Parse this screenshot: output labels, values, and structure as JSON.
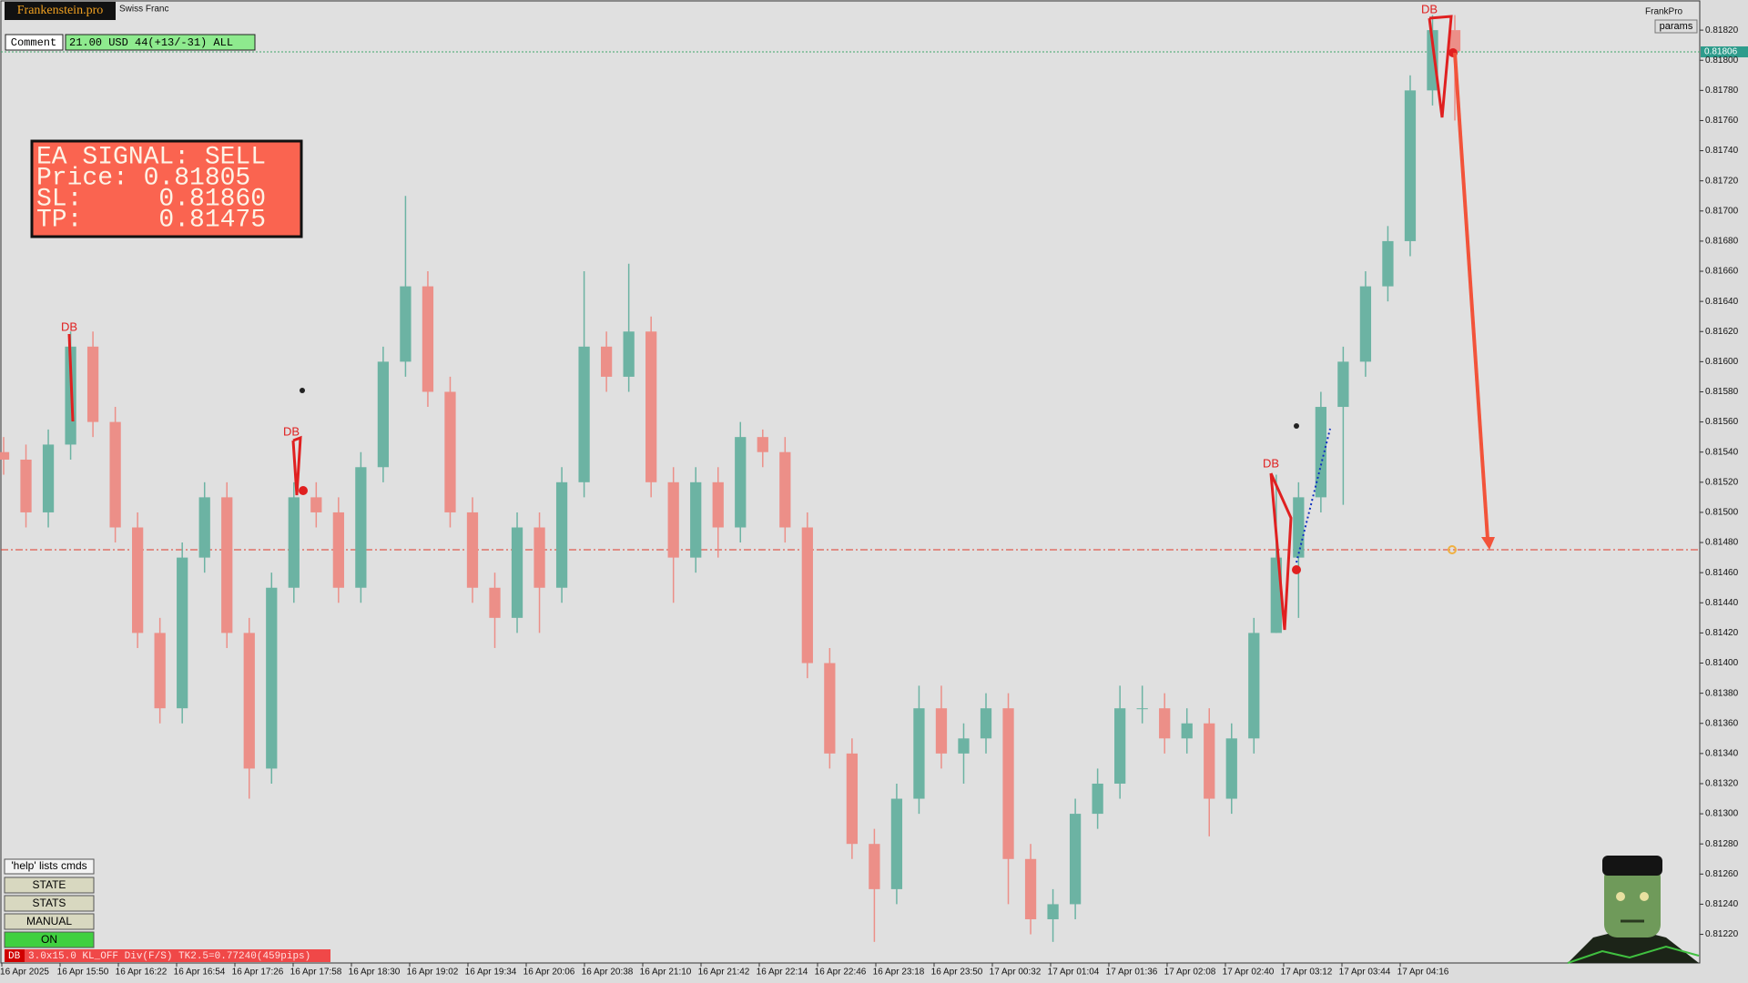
{
  "chart_data": {
    "type": "candlestick",
    "open": [
      0.8154,
      0.81535,
      0.815,
      0.81545,
      0.8161,
      0.8156,
      0.8149,
      0.8142,
      0.8137,
      0.8147,
      0.8151,
      0.8142,
      0.8133,
      0.8145,
      0.8151,
      0.815,
      0.8145,
      0.8153,
      0.816,
      0.8165,
      0.8158,
      0.815,
      0.8145,
      0.8143,
      0.8149,
      0.8145,
      0.8152,
      0.8161,
      0.8159,
      0.8162,
      0.8152,
      0.8147,
      0.8152,
      0.8149,
      0.8155,
      0.8154,
      0.8149,
      0.814,
      0.8134,
      0.8128,
      0.8125,
      0.8131,
      0.8137,
      0.8134,
      0.8135,
      0.8137,
      0.8127,
      0.8123,
      0.8124,
      0.813,
      0.8132,
      0.8137,
      0.8137,
      0.8135,
      0.8136,
      0.8131,
      0.8135,
      0.8142,
      0.8147,
      0.8151,
      0.8157,
      0.816,
      0.8165,
      0.8168,
      0.8178,
      0.8182
    ],
    "high": [
      0.8155,
      0.81545,
      0.81555,
      0.8162,
      0.8162,
      0.8157,
      0.815,
      0.8143,
      0.8148,
      0.8152,
      0.8152,
      0.8143,
      0.8146,
      0.8152,
      0.8152,
      0.8151,
      0.8154,
      0.8161,
      0.8171,
      0.8166,
      0.8159,
      0.8151,
      0.8146,
      0.815,
      0.815,
      0.8153,
      0.8166,
      0.8162,
      0.81665,
      0.8163,
      0.8153,
      0.8153,
      0.8153,
      0.8156,
      0.81555,
      0.8155,
      0.815,
      0.8141,
      0.8135,
      0.8129,
      0.8132,
      0.81385,
      0.81385,
      0.8136,
      0.8138,
      0.8138,
      0.8128,
      0.8125,
      0.8131,
      0.8133,
      0.81385,
      0.81385,
      0.8138,
      0.8137,
      0.8137,
      0.8136,
      0.8143,
      0.81525,
      0.8152,
      0.8158,
      0.8161,
      0.8166,
      0.8169,
      0.8179,
      0.8183,
      0.8183
    ],
    "low": [
      0.81525,
      0.8149,
      0.8149,
      0.81535,
      0.8155,
      0.8148,
      0.8141,
      0.8136,
      0.8136,
      0.8146,
      0.8141,
      0.8131,
      0.8132,
      0.8144,
      0.8149,
      0.8144,
      0.8144,
      0.8152,
      0.8159,
      0.8157,
      0.8149,
      0.8144,
      0.8141,
      0.8142,
      0.8142,
      0.8144,
      0.8151,
      0.8158,
      0.8158,
      0.8151,
      0.8144,
      0.8146,
      0.8147,
      0.8148,
      0.8153,
      0.8148,
      0.8139,
      0.8133,
      0.8127,
      0.81215,
      0.8124,
      0.813,
      0.8133,
      0.8132,
      0.8134,
      0.8124,
      0.8122,
      0.81215,
      0.8123,
      0.8129,
      0.8131,
      0.8136,
      0.8134,
      0.8134,
      0.81285,
      0.813,
      0.8134,
      0.8142,
      0.8143,
      0.815,
      0.81505,
      0.8159,
      0.8164,
      0.8167,
      0.8177,
      0.8176
    ],
    "close": [
      0.81535,
      0.815,
      0.81545,
      0.8161,
      0.8156,
      0.8149,
      0.8142,
      0.8137,
      0.8147,
      0.8151,
      0.8142,
      0.8133,
      0.8145,
      0.8151,
      0.815,
      0.8145,
      0.8153,
      0.816,
      0.8165,
      0.8158,
      0.815,
      0.8145,
      0.8143,
      0.8149,
      0.8145,
      0.8152,
      0.8161,
      0.8159,
      0.8162,
      0.8152,
      0.8147,
      0.8152,
      0.8149,
      0.8155,
      0.8154,
      0.8149,
      0.814,
      0.8134,
      0.8128,
      0.8125,
      0.8131,
      0.8137,
      0.8134,
      0.8135,
      0.8137,
      0.8127,
      0.8123,
      0.8124,
      0.813,
      0.8132,
      0.8137,
      0.8137,
      0.8135,
      0.8136,
      0.8131,
      0.8135,
      0.8142,
      0.8147,
      0.8151,
      0.8157,
      0.816,
      0.8165,
      0.8168,
      0.8178,
      0.8182,
      0.81806
    ],
    "up_color": "#6cb3a3",
    "down_color": "#ec8f88",
    "ylim": [
      0.81201,
      0.8184
    ],
    "yticks": [
      {
        "value": 0.8182,
        "label": "0.81820"
      },
      {
        "value": 0.818,
        "label": "0.81800"
      },
      {
        "value": 0.8178,
        "label": "0.81780"
      },
      {
        "value": 0.8176,
        "label": "0.81760"
      },
      {
        "value": 0.8174,
        "label": "0.81740"
      },
      {
        "value": 0.8172,
        "label": "0.81720"
      },
      {
        "value": 0.817,
        "label": "0.81700"
      },
      {
        "value": 0.8168,
        "label": "0.81680"
      },
      {
        "value": 0.8166,
        "label": "0.81660"
      },
      {
        "value": 0.8164,
        "label": "0.81640"
      },
      {
        "value": 0.8162,
        "label": "0.81620"
      },
      {
        "value": 0.816,
        "label": "0.81600"
      },
      {
        "value": 0.8158,
        "label": "0.81580"
      },
      {
        "value": 0.8156,
        "label": "0.81560"
      },
      {
        "value": 0.8154,
        "label": "0.81540"
      },
      {
        "value": 0.8152,
        "label": "0.81520"
      },
      {
        "value": 0.815,
        "label": "0.81500"
      },
      {
        "value": 0.8148,
        "label": "0.81480"
      },
      {
        "value": 0.8146,
        "label": "0.81460"
      },
      {
        "value": 0.8144,
        "label": "0.81440"
      },
      {
        "value": 0.8142,
        "label": "0.81420"
      },
      {
        "value": 0.814,
        "label": "0.81400"
      },
      {
        "value": 0.8138,
        "label": "0.81380"
      },
      {
        "value": 0.8136,
        "label": "0.81360"
      },
      {
        "value": 0.8134,
        "label": "0.81340"
      },
      {
        "value": 0.8132,
        "label": "0.81320"
      },
      {
        "value": 0.813,
        "label": "0.81300"
      },
      {
        "value": 0.8128,
        "label": "0.81280"
      },
      {
        "value": 0.8126,
        "label": "0.81260"
      },
      {
        "value": 0.8124,
        "label": "0.81240"
      },
      {
        "value": 0.8122,
        "label": "0.81220"
      }
    ],
    "time_labels": [
      "16 Apr 2025",
      "16 Apr 15:50",
      "16 Apr 16:22",
      "16 Apr 16:54",
      "16 Apr 17:26",
      "16 Apr 17:58",
      "16 Apr 18:30",
      "16 Apr 19:02",
      "16 Apr 19:34",
      "16 Apr 20:06",
      "16 Apr 20:38",
      "16 Apr 21:10",
      "16 Apr 21:42",
      "16 Apr 22:14",
      "16 Apr 22:46",
      "16 Apr 23:18",
      "16 Apr 23:50",
      "17 Apr 00:32",
      "17 Apr 01:04",
      "17 Apr 01:36",
      "17 Apr 02:08",
      "17 Apr 02:40",
      "17 Apr 03:12",
      "17 Apr 03:44",
      "17 Apr 04:16"
    ],
    "current_price_label": "0.81806",
    "pattern_labels": [
      "DB",
      "DB",
      "DB",
      "DB"
    ]
  },
  "ui": {
    "logo": "Frankenstein.pro",
    "symbol_name": "Swiss Franc",
    "comment_label": "Comment",
    "comment_value": "21.00 USD 44(+13/-31) ALL",
    "signal": [
      "EA SIGNAL: SELL",
      "Price: 0.81805",
      "SL:     0.81860",
      "TP:     0.81475"
    ],
    "expert_name": "FrankPro",
    "params_button": "params",
    "buttons": [
      "'help' lists cmds",
      "STATE",
      "STATS",
      "MANUAL",
      "ON"
    ],
    "status_tag": "DB",
    "status_text": "3.0x15.0 KL_OFF Div(F/S) TK2.5=0.77240(459pips)"
  }
}
